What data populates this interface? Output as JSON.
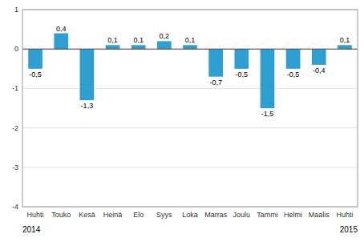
{
  "chart_data": {
    "type": "bar",
    "categories": [
      "Huhti",
      "Touko",
      "Kesä",
      "Heinä",
      "Elo",
      "Syys",
      "Loka",
      "Marras",
      "Joulu",
      "Tammi",
      "Helmi",
      "Maalis",
      "Huhti"
    ],
    "values": [
      -0.5,
      0.4,
      -1.3,
      0.1,
      0.1,
      0.2,
      0.1,
      -0.7,
      -0.5,
      -1.5,
      -0.5,
      -0.4,
      0.1
    ],
    "value_labels": [
      "-0,5",
      "0,4",
      "-1,3",
      "0,1",
      "0,1",
      "0,2",
      "0,1",
      "-0,7",
      "-0,5",
      "-1,5",
      "-0,5",
      "-0,4",
      "0,1"
    ],
    "color": "#2e9fd0",
    "ylim": [
      -4,
      1
    ],
    "yticks": [
      -4,
      -3,
      -2,
      -1,
      0,
      1
    ],
    "grid": true,
    "data_labels": true,
    "annotations": [
      "2014",
      "2015"
    ]
  }
}
